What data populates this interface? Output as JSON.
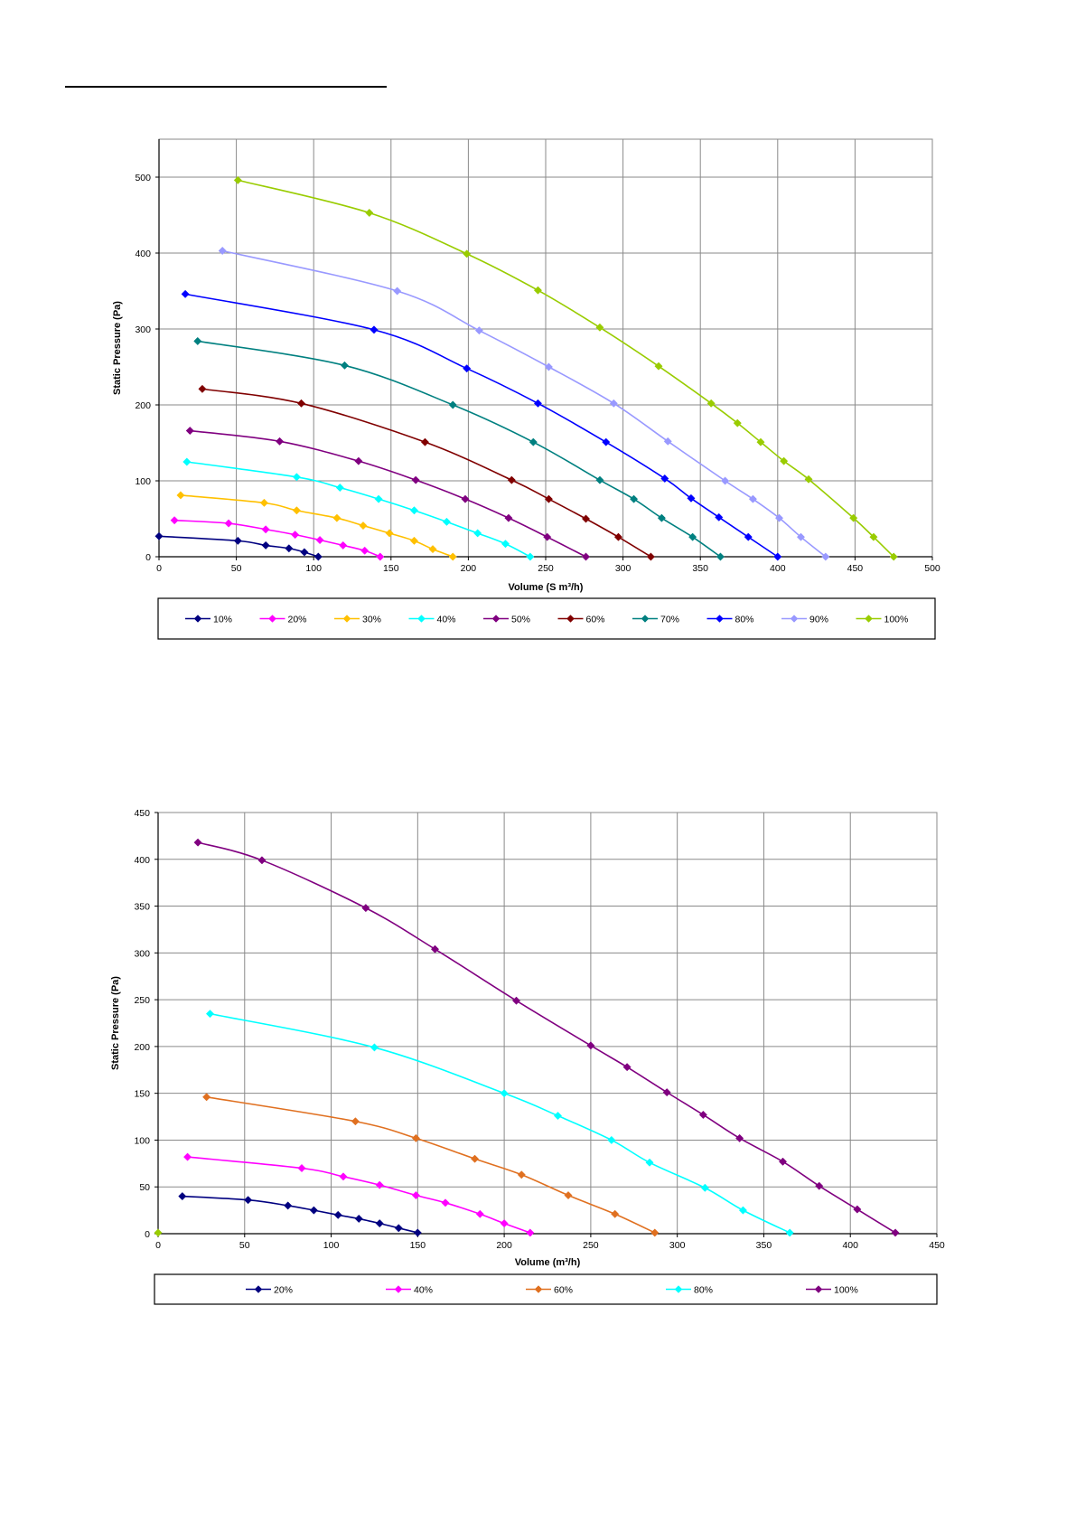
{
  "chart_data": [
    {
      "type": "line",
      "xlabel": "Volume  (S m³/h)",
      "ylabel": "Static Pressure (Pa)",
      "xlim": [
        0,
        500
      ],
      "ylim": [
        0,
        550
      ],
      "xticks": [
        0,
        50,
        100,
        150,
        200,
        250,
        300,
        350,
        400,
        450,
        500
      ],
      "yticks": [
        0,
        100,
        200,
        300,
        400,
        500
      ],
      "grid": true,
      "legend_position": "bottom",
      "series": [
        {
          "name": "10%",
          "color": "#000080",
          "points": [
            [
              0,
              27
            ],
            [
              51,
              21
            ],
            [
              69,
              15
            ],
            [
              84,
              11
            ],
            [
              94,
              6
            ],
            [
              103,
              0
            ]
          ]
        },
        {
          "name": "20%",
          "color": "#FF00FF",
          "points": [
            [
              10,
              48
            ],
            [
              45,
              44
            ],
            [
              69,
              36
            ],
            [
              88,
              29
            ],
            [
              104,
              22
            ],
            [
              119,
              15
            ],
            [
              133,
              8
            ],
            [
              143,
              0
            ]
          ]
        },
        {
          "name": "30%",
          "color": "#FFC000",
          "points": [
            [
              14,
              81
            ],
            [
              68,
              71
            ],
            [
              89,
              61
            ],
            [
              115,
              51
            ],
            [
              132,
              41
            ],
            [
              149,
              31
            ],
            [
              165,
              21
            ],
            [
              177,
              10
            ],
            [
              190,
              0
            ]
          ]
        },
        {
          "name": "40%",
          "color": "#00FFFF",
          "points": [
            [
              18,
              125
            ],
            [
              89,
              105
            ],
            [
              117,
              91
            ],
            [
              142,
              76
            ],
            [
              165,
              61
            ],
            [
              186,
              46
            ],
            [
              206,
              31
            ],
            [
              224,
              17
            ],
            [
              240,
              0
            ]
          ]
        },
        {
          "name": "50%",
          "color": "#800080",
          "points": [
            [
              20,
              166
            ],
            [
              78,
              152
            ],
            [
              129,
              126
            ],
            [
              166,
              101
            ],
            [
              198,
              76
            ],
            [
              226,
              51
            ],
            [
              251,
              26
            ],
            [
              276,
              0
            ]
          ]
        },
        {
          "name": "60%",
          "color": "#800000",
          "points": [
            [
              28,
              221
            ],
            [
              92,
              202
            ],
            [
              172,
              151
            ],
            [
              228,
              101
            ],
            [
              252,
              76
            ],
            [
              276,
              50
            ],
            [
              297,
              26
            ],
            [
              318,
              0
            ]
          ]
        },
        {
          "name": "70%",
          "color": "#008080",
          "points": [
            [
              25,
              284
            ],
            [
              120,
              252
            ],
            [
              190,
              200
            ],
            [
              242,
              151
            ],
            [
              285,
              101
            ],
            [
              307,
              76
            ],
            [
              325,
              51
            ],
            [
              345,
              26
            ],
            [
              363,
              0
            ]
          ]
        },
        {
          "name": "80%",
          "color": "#0000FF",
          "points": [
            [
              17,
              346
            ],
            [
              139,
              299
            ],
            [
              199,
              248
            ],
            [
              245,
              202
            ],
            [
              289,
              151
            ],
            [
              327,
              103
            ],
            [
              344,
              77
            ],
            [
              362,
              52
            ],
            [
              381,
              26
            ],
            [
              400,
              0
            ]
          ]
        },
        {
          "name": "90%",
          "color": "#9999FF",
          "points": [
            [
              41,
              403
            ],
            [
              154,
              350
            ],
            [
              207,
              298
            ],
            [
              252,
              250
            ],
            [
              294,
              202
            ],
            [
              329,
              152
            ],
            [
              366,
              100
            ],
            [
              384,
              76
            ],
            [
              401,
              51
            ],
            [
              415,
              26
            ],
            [
              431,
              0
            ]
          ]
        },
        {
          "name": "100%",
          "color": "#99CC00",
          "points": [
            [
              51,
              496
            ],
            [
              136,
              453
            ],
            [
              199,
              399
            ],
            [
              245,
              351
            ],
            [
              285,
              302
            ],
            [
              323,
              251
            ],
            [
              357,
              202
            ],
            [
              374,
              176
            ],
            [
              389,
              151
            ],
            [
              404,
              126
            ],
            [
              420,
              102
            ],
            [
              449,
              51
            ],
            [
              462,
              26
            ],
            [
              475,
              0
            ]
          ]
        }
      ]
    },
    {
      "type": "line",
      "xlabel": "Volume  (m³/h)",
      "ylabel": "Static Pressure (Pa)",
      "xlim": [
        0,
        450
      ],
      "ylim": [
        0,
        450
      ],
      "xticks": [
        0,
        50,
        100,
        150,
        200,
        250,
        300,
        350,
        400,
        450
      ],
      "yticks": [
        0,
        50,
        100,
        150,
        200,
        250,
        300,
        350,
        400,
        450
      ],
      "grid": true,
      "legend_position": "bottom",
      "series": [
        {
          "name": "20%",
          "color": "#000080",
          "points": [
            [
              14,
              40
            ],
            [
              52,
              36
            ],
            [
              75,
              30
            ],
            [
              90,
              25
            ],
            [
              104,
              20
            ],
            [
              116,
              16
            ],
            [
              128,
              11
            ],
            [
              139,
              6
            ],
            [
              150,
              1
            ]
          ]
        },
        {
          "name": "40%",
          "color": "#FF00FF",
          "points": [
            [
              17,
              82
            ],
            [
              83,
              70
            ],
            [
              107,
              61
            ],
            [
              128,
              52
            ],
            [
              149,
              41
            ],
            [
              166,
              33
            ],
            [
              186,
              21
            ],
            [
              200,
              11
            ],
            [
              215,
              1
            ]
          ]
        },
        {
          "name": "60%",
          "color": "#E07020",
          "points": [
            [
              28,
              146
            ],
            [
              114,
              120
            ],
            [
              149,
              102
            ],
            [
              183,
              80
            ],
            [
              210,
              63
            ],
            [
              237,
              41
            ],
            [
              264,
              21
            ],
            [
              287,
              1
            ]
          ]
        },
        {
          "name": "80%",
          "color": "#00FFFF",
          "points": [
            [
              30,
              235
            ],
            [
              125,
              199
            ],
            [
              200,
              150
            ],
            [
              231,
              126
            ],
            [
              262,
              100
            ],
            [
              284,
              76
            ],
            [
              316,
              49
            ],
            [
              338,
              25
            ],
            [
              365,
              1
            ]
          ]
        },
        {
          "name": "100%",
          "color": "#800080",
          "points": [
            [
              23,
              418
            ],
            [
              60,
              399
            ],
            [
              120,
              348
            ],
            [
              160,
              304
            ],
            [
              207,
              249
            ],
            [
              250,
              201
            ],
            [
              271,
              178
            ],
            [
              294,
              151
            ],
            [
              315,
              127
            ],
            [
              336,
              102
            ],
            [
              361,
              77
            ],
            [
              382,
              51
            ],
            [
              404,
              26
            ],
            [
              426,
              1
            ]
          ]
        }
      ],
      "extra_markers": [
        {
          "color": "#99CC00",
          "points": [
            [
              0,
              1
            ]
          ]
        }
      ]
    }
  ]
}
